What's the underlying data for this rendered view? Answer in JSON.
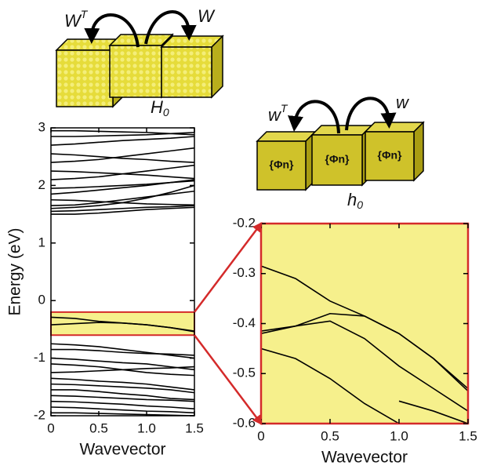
{
  "diagrams": {
    "top": {
      "left_label": {
        "base": "W",
        "sup": "T"
      },
      "right_label": "W",
      "bottom_label": {
        "base": "H",
        "sub": "0"
      }
    },
    "right": {
      "left_label": {
        "base": "w",
        "sup": "T"
      },
      "right_label": "w",
      "bottom_label": {
        "base": "h",
        "sub": "0"
      },
      "cube_label": "{Φn}"
    }
  },
  "chart_data": [
    {
      "type": "line",
      "ylabel": "Energy (eV)",
      "xlabel": "Wavevector",
      "line_color": "#000000",
      "xlim": [
        0,
        1.5
      ],
      "ylim": [
        -2,
        3
      ],
      "xticks": [
        0,
        0.5,
        {
          "value": 1,
          "label": "1.0"
        },
        1.5
      ],
      "yticks": [
        -2,
        -1,
        0,
        1,
        2,
        3
      ],
      "x": [
        0,
        0.25,
        0.5,
        0.75,
        1,
        1.25,
        1.5
      ],
      "series": [
        {
          "values": [
            2.95,
            2.95,
            2.94,
            2.93,
            2.92,
            2.9,
            2.88
          ]
        },
        {
          "values": [
            2.85,
            2.85,
            2.86,
            2.87,
            2.88,
            2.9,
            2.92
          ]
        },
        {
          "values": [
            2.7,
            2.72,
            2.75,
            2.78,
            2.8,
            2.82,
            2.85
          ]
        },
        {
          "values": [
            2.55,
            2.53,
            2.5,
            2.47,
            2.45,
            2.42,
            2.4
          ]
        },
        {
          "values": [
            2.4,
            2.42,
            2.45,
            2.5,
            2.55,
            2.6,
            2.65
          ]
        },
        {
          "values": [
            2.25,
            2.24,
            2.22,
            2.2,
            2.18,
            2.15,
            2.12
          ]
        },
        {
          "values": [
            2.1,
            2.12,
            2.15,
            2.2,
            2.25,
            2.3,
            2.35
          ]
        },
        {
          "values": [
            1.95,
            1.96,
            1.98,
            2.0,
            2.02,
            2.05,
            2.08
          ]
        },
        {
          "values": [
            1.85,
            1.88,
            1.92,
            1.96,
            2.0,
            2.05,
            2.1
          ]
        },
        {
          "values": [
            1.75,
            1.74,
            1.72,
            1.7,
            1.68,
            1.67,
            1.66
          ]
        },
        {
          "values": [
            1.65,
            1.66,
            1.7,
            1.75,
            1.8,
            1.85,
            1.9
          ]
        },
        {
          "values": [
            1.6,
            1.62,
            1.65,
            1.7,
            1.78,
            1.88,
            2.0
          ]
        },
        {
          "values": [
            1.55,
            1.56,
            1.58,
            1.6,
            1.62,
            1.63,
            1.65
          ]
        },
        {
          "values": [
            1.5,
            1.5,
            1.52,
            1.55,
            1.58,
            1.6,
            1.62
          ]
        },
        {
          "values": [
            -0.29,
            -0.31,
            -0.36,
            -0.39,
            -0.42,
            -0.47,
            -0.53
          ]
        },
        {
          "values": [
            -0.42,
            -0.4,
            -0.38,
            -0.39,
            -0.42,
            -0.47,
            -0.54
          ]
        },
        {
          "values": [
            -0.75,
            -0.77,
            -0.8,
            -0.85,
            -0.9,
            -0.95,
            -1.0
          ]
        },
        {
          "values": [
            -0.85,
            -0.85,
            -0.87,
            -0.9,
            -0.92,
            -0.93,
            -0.95
          ]
        },
        {
          "values": [
            -1.0,
            -1.02,
            -1.05,
            -1.08,
            -1.1,
            -1.15,
            -1.2
          ]
        },
        {
          "values": [
            -1.1,
            -1.12,
            -1.15,
            -1.2,
            -1.25,
            -1.28,
            -1.3
          ]
        },
        {
          "values": [
            -1.25,
            -1.24,
            -1.22,
            -1.2,
            -1.18,
            -1.17,
            -1.15
          ]
        },
        {
          "values": [
            -1.35,
            -1.37,
            -1.4,
            -1.42,
            -1.45,
            -1.5,
            -1.55
          ]
        },
        {
          "values": [
            -1.45,
            -1.46,
            -1.48,
            -1.5,
            -1.52,
            -1.55,
            -1.6
          ]
        },
        {
          "values": [
            -1.55,
            -1.55,
            -1.58,
            -1.62,
            -1.65,
            -1.7,
            -1.72
          ]
        },
        {
          "values": [
            -1.65,
            -1.66,
            -1.68,
            -1.7,
            -1.72,
            -1.73,
            -1.75
          ]
        },
        {
          "values": [
            -1.75,
            -1.76,
            -1.78,
            -1.8,
            -1.83,
            -1.85,
            -1.88
          ]
        },
        {
          "values": [
            -1.85,
            -1.86,
            -1.88,
            -1.9,
            -1.92,
            -1.93,
            -1.95
          ]
        },
        {
          "values": [
            -1.95,
            -1.95,
            -1.96,
            -1.97,
            -1.98,
            -1.99,
            -2.0
          ]
        }
      ]
    },
    {
      "type": "line",
      "xlabel": "Wavevector",
      "line_color": "#000000",
      "background": "#f6f08c",
      "border_color": "#d42a2a",
      "xlim": [
        0,
        1.5
      ],
      "ylim": [
        -0.6,
        -0.2
      ],
      "xticks": [
        0,
        0.5,
        {
          "value": 1,
          "label": "1.0"
        },
        1.5
      ],
      "yticks": [
        -0.6,
        -0.5,
        -0.4,
        -0.3,
        -0.2
      ],
      "x": [
        0,
        0.25,
        0.5,
        0.75,
        1,
        1.25,
        1.5
      ],
      "series": [
        {
          "values": [
            -0.285,
            -0.31,
            -0.355,
            -0.385,
            -0.42,
            -0.47,
            -0.53
          ]
        },
        {
          "values": [
            -0.42,
            -0.405,
            -0.38,
            -0.385,
            -0.42,
            -0.47,
            -0.535
          ]
        },
        {
          "values": [
            -0.415,
            -0.405,
            -0.395,
            -0.43,
            -0.485,
            -0.53,
            -0.575
          ]
        },
        {
          "values": [
            -0.45,
            -0.47,
            -0.51,
            -0.56,
            -0.6,
            null,
            null
          ]
        },
        {
          "values": [
            null,
            null,
            null,
            null,
            -0.555,
            -0.575,
            -0.6
          ]
        }
      ]
    }
  ]
}
